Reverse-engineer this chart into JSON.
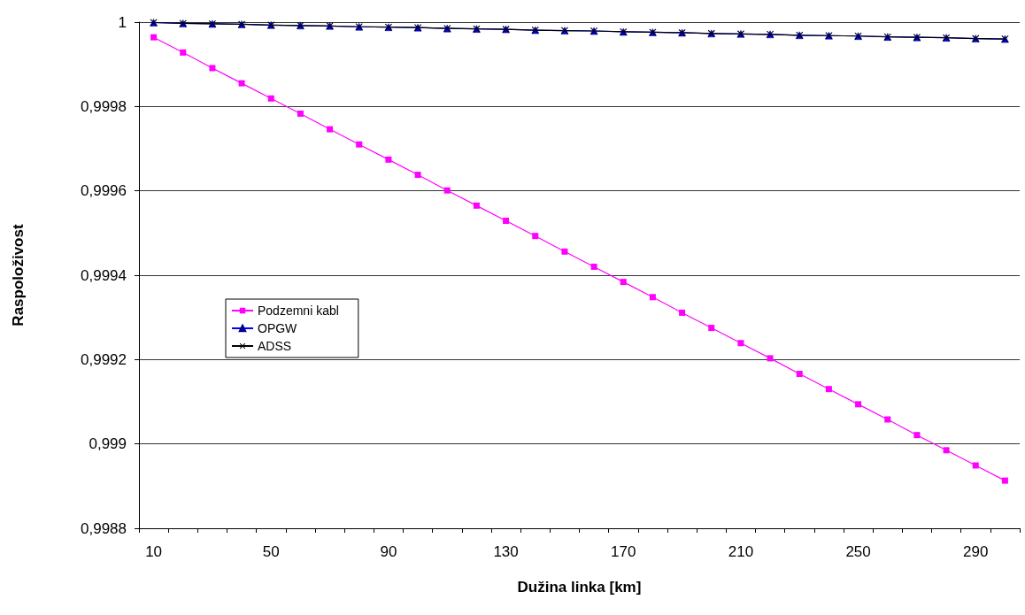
{
  "chart_data": {
    "type": "line",
    "xlabel": "Dužina linka [km]",
    "ylabel": "Raspoloživost",
    "categories": [
      "10",
      null,
      null,
      null,
      "50",
      null,
      null,
      null,
      "90",
      null,
      null,
      null,
      "130",
      null,
      null,
      null,
      "170",
      null,
      null,
      null,
      "210",
      null,
      null,
      null,
      "250",
      null,
      null,
      null,
      "290",
      null
    ],
    "series": [
      {
        "name": "Podzemni kabl",
        "color": "#ff00ff",
        "marker": "square",
        "values": [
          0.999964,
          0.999928,
          0.999891,
          0.999855,
          0.999819,
          0.999783,
          0.999746,
          0.99971,
          0.999674,
          0.999638,
          0.999601,
          0.999565,
          0.999529,
          0.999493,
          0.999456,
          0.99942,
          0.999384,
          0.999348,
          0.999311,
          0.999275,
          0.999239,
          0.999203,
          0.999166,
          0.99913,
          0.999094,
          0.999058,
          0.999021,
          0.998985,
          0.998949,
          0.998913
        ]
      },
      {
        "name": "OPGW",
        "color": "#0000ff",
        "marker": "triangle",
        "values": [
          0.999999,
          0.999997,
          0.999996,
          0.999995,
          0.999993,
          0.999992,
          0.999991,
          0.999989,
          0.999988,
          0.999987,
          0.999985,
          0.999984,
          0.999983,
          0.999981,
          0.99998,
          0.999979,
          0.999977,
          0.999976,
          0.999975,
          0.999973,
          0.999972,
          0.999971,
          0.999969,
          0.999968,
          0.999967,
          0.999965,
          0.999964,
          0.999963,
          0.999961,
          0.99996
        ]
      },
      {
        "name": "ADSS",
        "color": "#000000",
        "marker": "cross",
        "values": [
          0.999999,
          0.999997,
          0.999996,
          0.999995,
          0.999993,
          0.999992,
          0.999991,
          0.999989,
          0.999988,
          0.999987,
          0.999985,
          0.999984,
          0.999983,
          0.999981,
          0.99998,
          0.999979,
          0.999977,
          0.999976,
          0.999975,
          0.999973,
          0.999972,
          0.999971,
          0.999969,
          0.999968,
          0.999967,
          0.999965,
          0.999964,
          0.999963,
          0.999961,
          0.99996
        ]
      }
    ],
    "ylim": [
      0.9988,
      1
    ],
    "yticks": [
      {
        "value": 0.9988,
        "label": "0,9988"
      },
      {
        "value": 0.999,
        "label": "0,999"
      },
      {
        "value": 0.9992,
        "label": "0,9992"
      },
      {
        "value": 0.9994,
        "label": "0,9994"
      },
      {
        "value": 0.9996,
        "label": "0,9996"
      },
      {
        "value": 0.9998,
        "label": "0,9998"
      },
      {
        "value": 1,
        "label": "1"
      }
    ],
    "grid": "y",
    "legend": "left",
    "line_style": "solid"
  }
}
